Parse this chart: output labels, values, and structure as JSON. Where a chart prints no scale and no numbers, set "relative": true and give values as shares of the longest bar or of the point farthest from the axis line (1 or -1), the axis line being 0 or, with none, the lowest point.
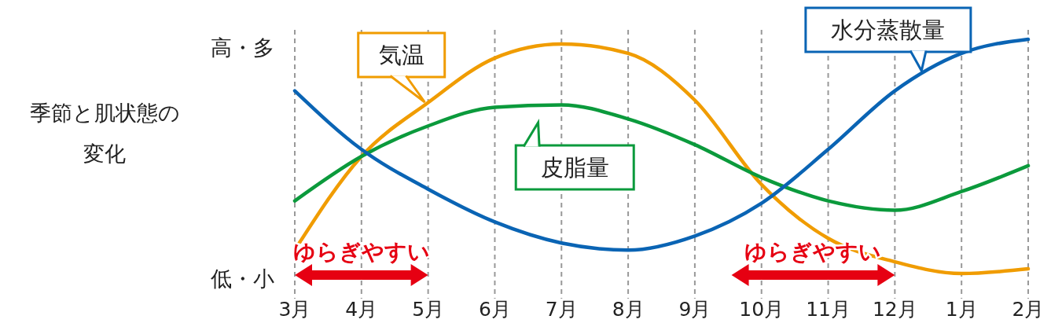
{
  "chart_data": {
    "type": "line",
    "relative": true,
    "ylabel": "季節と肌状態の変化",
    "categories": [
      "3月",
      "4月",
      "5月",
      "6月",
      "7月",
      "8月",
      "9月",
      "10月",
      "11月",
      "12月",
      "1月",
      "2月"
    ],
    "series": [
      {
        "name": "気温",
        "color": "#f09c00",
        "values": [
          0.1,
          0.5,
          0.73,
          0.92,
          0.98,
          0.94,
          0.74,
          0.38,
          0.15,
          0.05,
          0.0,
          0.02
        ]
      },
      {
        "name": "皮脂量",
        "color": "#0b9a3c",
        "values": [
          0.31,
          0.5,
          0.63,
          0.71,
          0.72,
          0.66,
          0.55,
          0.41,
          0.31,
          0.27,
          0.35,
          0.46
        ]
      },
      {
        "name": "水分蒸散量",
        "color": "#0a64b4",
        "values": [
          0.78,
          0.53,
          0.36,
          0.22,
          0.13,
          0.1,
          0.16,
          0.3,
          0.53,
          0.78,
          0.94,
          1.0
        ]
      }
    ],
    "annotations": [
      "高・多",
      "低・小",
      "ゆらぎやすい",
      "ゆらぎやすい"
    ],
    "grid": "x",
    "line_style": "solid",
    "marker": "none"
  }
}
